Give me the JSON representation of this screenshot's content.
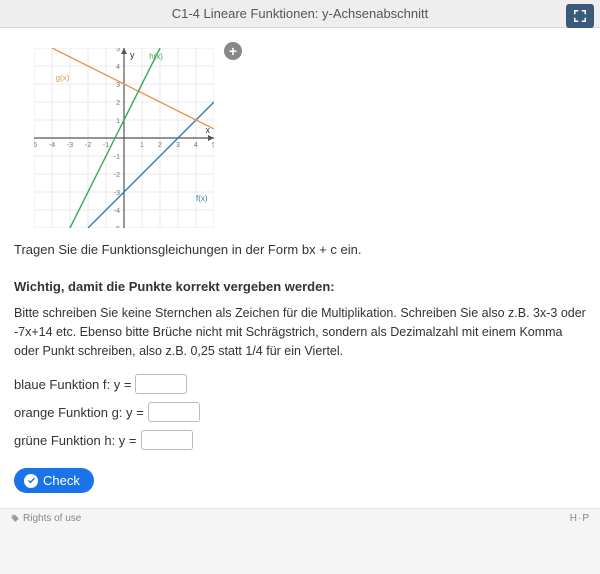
{
  "header": {
    "title": "C1-4 Lineare Funktionen: y-Achsenabschnitt"
  },
  "chart": {
    "width": 180,
    "height": 180,
    "xmin": -5,
    "xmax": 5,
    "ymin": -5,
    "ymax": 5,
    "axis_label_x": "x",
    "axis_label_y": "y",
    "axis_fontsize": 9,
    "tick_fontsize": 7,
    "background_color": "#ffffff",
    "grid_color": "#e8e8f0",
    "axis_color": "#555555",
    "lines": [
      {
        "name": "f(x)",
        "label": "f(x)",
        "color": "#3a7ab8",
        "slope": 1,
        "intercept": -3,
        "label_x": 4.0,
        "label_y": -3.5
      },
      {
        "name": "g(x)",
        "label": "g(x)",
        "color": "#e8954a",
        "slope": -0.5,
        "intercept": 3,
        "label_x": -3.8,
        "label_y": 3.2
      },
      {
        "name": "h(x)",
        "label": "h(x)",
        "color": "#3aa85a",
        "slope": 2,
        "intercept": 1,
        "label_x": 1.4,
        "label_y": 4.4
      }
    ]
  },
  "instruction": "Tragen Sie die Funktionsgleichungen in der Form bx + c ein.",
  "important": {
    "title": "Wichtig, damit die Punkte korrekt vergeben werden",
    "body": "Bitte schreiben Sie keine Sternchen als Zeichen für die Multiplikation. Schreiben Sie also z.B. 3x-3 oder -7x+14 etc. Ebenso bitte Brüche nicht mit Schrägstrich, sondern als Dezimalzahl mit einem Komma oder Punkt schreiben, also z.B. 0,25 statt 1/4 für ein Viertel."
  },
  "inputs": {
    "f": {
      "label": "blaue Funktion f: y =",
      "value": ""
    },
    "g": {
      "label": "orange Funktion g: y =",
      "value": ""
    },
    "h": {
      "label": "grüne Funktion h: y =",
      "value": ""
    }
  },
  "check_label": "Check",
  "footer": {
    "rights": "Rights of use",
    "logo": "H·P"
  }
}
